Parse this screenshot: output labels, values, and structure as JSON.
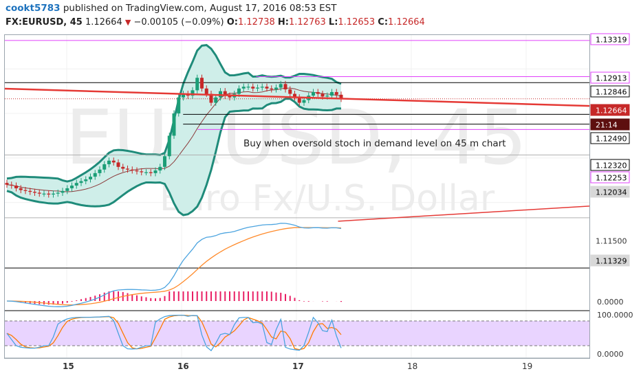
{
  "header": {
    "user": "cookt5783",
    "published_text": "published on TradingView.com, August 17, 2016 08:53 EST",
    "symbol_interval": "FX:EURUSD, 45",
    "last": "1.12664",
    "change": "−0.00105 (−0.09%)",
    "o_label": "O:",
    "o": "1.12738",
    "h_label": "H:",
    "h": "1.12763",
    "l_label": "L:",
    "l": "1.12653",
    "c_label": "C:",
    "c": "1.12664"
  },
  "watermark": {
    "symbol": "EURUSD, 45",
    "description": "Euro Fx/U.S. Dollar"
  },
  "colors": {
    "up": "#1b9e77",
    "down": "#c62828",
    "magenta": "#e040fb",
    "band": "#1f8b7a",
    "band_fill": "#cfeee9",
    "trend": "#e53935",
    "macd": "#4aa3df",
    "signal": "#ff8a2a",
    "hist": "#e91e63",
    "stoch_k": "#4aa3df",
    "stoch_d": "#ff7a00",
    "stoch_fill": "#e9d4ff"
  },
  "chart_data": {
    "type": "candlestick",
    "symbol": "FX:EURUSD",
    "interval": "45",
    "x_ticks": [
      "15",
      "16",
      "17",
      "18",
      "19"
    ],
    "ylim": [
      1.1078,
      1.1338
    ],
    "price_labels": [
      {
        "value": "1.13319",
        "style": "magenta"
      },
      {
        "value": "1.12913",
        "style": "magenta"
      },
      {
        "value": "1.12846",
        "style": "black"
      },
      {
        "value": "1.12664",
        "style": "red"
      },
      {
        "value": "21:14",
        "style": "dark"
      },
      {
        "value": "1.12490",
        "style": "black"
      },
      {
        "value": "1.12320",
        "style": "black"
      },
      {
        "value": "1.12253",
        "style": "magenta"
      },
      {
        "value": "1.12034",
        "style": "grey"
      },
      {
        "value": "1.11500",
        "style": "plain"
      },
      {
        "value": "1.11329",
        "style": "grey"
      }
    ],
    "horizontal_levels": [
      {
        "price": 1.13319,
        "color": "magenta",
        "x_start": 0.0
      },
      {
        "price": 1.12913,
        "color": "magenta",
        "x_start": 0.43
      },
      {
        "price": 1.12846,
        "color": "black",
        "x_start": 0.0
      },
      {
        "price": 1.1249,
        "color": "black",
        "x_start": 0.305
      },
      {
        "price": 1.1238,
        "color": "black",
        "x_start": 0.305
      },
      {
        "price": 1.1232,
        "color": "magenta",
        "x_start": 0.33
      },
      {
        "price": 1.12034,
        "color": "grey",
        "x_start": 0.0
      },
      {
        "price": 1.11329,
        "color": "grey",
        "x_start": 0.0
      }
    ],
    "trend_lines": [
      {
        "x1": 0.0,
        "y1": 1.12778,
        "x2": 1.0,
        "y2": 1.12584,
        "color": "red",
        "width": 2.5
      },
      {
        "x1": 0.57,
        "y1": 1.1129,
        "x2": 1.0,
        "y2": 1.1146,
        "color": "red",
        "width": 1.5
      }
    ],
    "annotation": "Buy when oversold stoch in demand level on 45 m chart",
    "candles_close": [
      1.117,
      1.1169,
      1.1166,
      1.1164,
      1.1163,
      1.1162,
      1.1161,
      1.116,
      1.116,
      1.1159,
      1.116,
      1.1161,
      1.1163,
      1.1166,
      1.1169,
      1.1172,
      1.1174,
      1.1176,
      1.1179,
      1.1183,
      1.1187,
      1.1193,
      1.1197,
      1.1195,
      1.119,
      1.1188,
      1.1187,
      1.1186,
      1.1185,
      1.1184,
      1.1184,
      1.1183,
      1.1186,
      1.119,
      1.1202,
      1.1225,
      1.125,
      1.1268,
      1.1272,
      1.127,
      1.1276,
      1.129,
      1.1278,
      1.1272,
      1.1262,
      1.1268,
      1.1275,
      1.127,
      1.1268,
      1.1272,
      1.1278,
      1.128,
      1.128,
      1.1278,
      1.1279,
      1.128,
      1.1278,
      1.1277,
      1.1279,
      1.1283,
      1.1277,
      1.1272,
      1.1268,
      1.1262,
      1.1265,
      1.127,
      1.1274,
      1.1272,
      1.1269,
      1.127,
      1.1274,
      1.1271,
      1.12664
    ],
    "macd_zero_label": "0.0000",
    "stoch_labels": [
      "100.0000",
      "0.0000"
    ]
  }
}
